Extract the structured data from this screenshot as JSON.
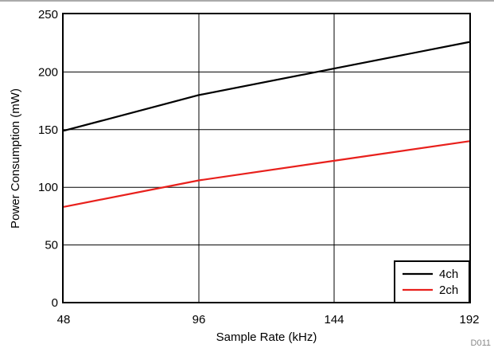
{
  "chart_data": {
    "type": "line",
    "xlabel": "Sample Rate (kHz)",
    "ylabel": "Power Consumption (mW)",
    "x": [
      48,
      96,
      144,
      192
    ],
    "xlim": [
      48,
      192
    ],
    "ylim": [
      0,
      250
    ],
    "xticks": [
      48,
      96,
      144,
      192
    ],
    "yticks": [
      0,
      50,
      100,
      150,
      200,
      250
    ],
    "grid": true,
    "legend_position": "bottom-right",
    "series": [
      {
        "name": "4ch",
        "color": "#000000",
        "values": [
          149,
          180,
          203,
          226
        ]
      },
      {
        "name": "2ch",
        "color": "#e8201c",
        "values": [
          83,
          106,
          123,
          140
        ]
      }
    ]
  },
  "figure_id": "D011"
}
